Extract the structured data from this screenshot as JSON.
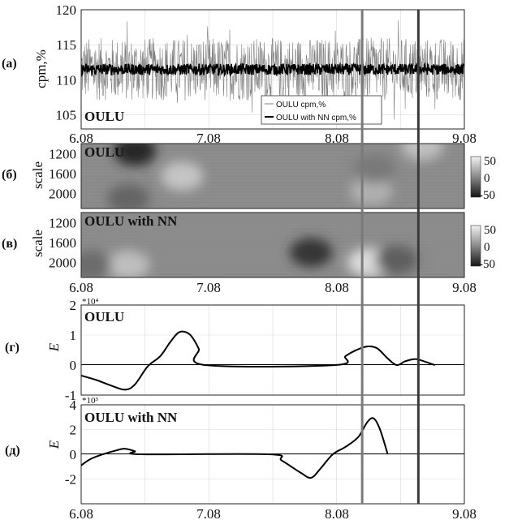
{
  "figure": {
    "x_ticks": [
      "6.08",
      "7.08",
      "8.08",
      "9.08"
    ],
    "vertical_markers": [
      {
        "x": 8.28,
        "color": "#7a7a7a"
      },
      {
        "x": 8.72,
        "color": "#3a3a3a"
      }
    ]
  },
  "colors": {
    "raw_series": "#7f7f7f",
    "nn_series": "#000000",
    "grid": "#d9d9d9",
    "heatmap_base": "#8a8a8a",
    "frame": "#222222"
  },
  "chart_data": [
    {
      "type": "line",
      "panel_label": "(а)",
      "inset_label": "OULU",
      "ylabel": "cpm,%",
      "ylim": [
        103,
        120
      ],
      "y_ticks": [
        "105",
        "110",
        "115",
        "120"
      ],
      "x_range": [
        6.08,
        9.08
      ],
      "x_ticks": [
        "6.08",
        "7.08",
        "8.08",
        "9.08"
      ],
      "legend_position": "bottom-right",
      "series": [
        {
          "name": "OULU cpm,%",
          "color": "#7f7f7f",
          "mean": 111.5,
          "noise_amplitude": 4.5,
          "min": 104,
          "max": 118.5
        },
        {
          "name": "OULU with NN cpm,%",
          "color": "#000000",
          "mean": 111.5,
          "noise_amplitude": 0.8
        }
      ]
    },
    {
      "type": "heatmap",
      "panel_label": "(б)",
      "inset_label": "OULU",
      "ylabel": "scale",
      "y_ticks": [
        "1200",
        "1600",
        "2000"
      ],
      "y_range": [
        1000,
        2300
      ],
      "x_range": [
        6.08,
        9.08
      ],
      "colorbar_ticks": [
        "50",
        "0",
        "-50"
      ],
      "blobs": [
        {
          "x": 6.5,
          "scale": 1150,
          "value": -70
        },
        {
          "x": 6.87,
          "scale": 1650,
          "value": 45
        },
        {
          "x": 6.45,
          "scale": 2100,
          "value": -25
        },
        {
          "x": 8.35,
          "scale": 1950,
          "value": 30
        },
        {
          "x": 8.75,
          "scale": 1050,
          "value": 40
        },
        {
          "x": 8.38,
          "scale": 1500,
          "value": -10
        }
      ]
    },
    {
      "type": "heatmap",
      "panel_label": "(в)",
      "inset_label": "OULU with NN",
      "ylabel": "scale",
      "y_ticks": [
        "1200",
        "1600",
        "2000"
      ],
      "y_range": [
        1000,
        2300
      ],
      "x_range": [
        6.08,
        9.08
      ],
      "colorbar_ticks": [
        "50",
        "0",
        "-50"
      ],
      "blobs": [
        {
          "x": 6.45,
          "scale": 2050,
          "value": 40
        },
        {
          "x": 6.15,
          "scale": 2050,
          "value": -20
        },
        {
          "x": 7.88,
          "scale": 1800,
          "value": -60
        },
        {
          "x": 8.33,
          "scale": 2000,
          "value": 60
        },
        {
          "x": 8.55,
          "scale": 1950,
          "value": -30
        }
      ]
    },
    {
      "type": "line",
      "panel_label": "(г)",
      "inset_label": "OULU",
      "ylabel": "E",
      "y_multiplier": "*10⁴",
      "y_ticks": [
        "2",
        "1",
        "0",
        "-1"
      ],
      "ylim": [
        -1,
        2
      ],
      "x_range": [
        6.08,
        9.08
      ],
      "x": [
        6.08,
        6.2,
        6.3,
        6.42,
        6.5,
        6.6,
        6.7,
        6.78,
        6.85,
        6.93,
        7.0,
        7.05,
        8.07,
        8.15,
        8.25,
        8.33,
        8.4,
        8.48,
        8.55,
        8.62,
        8.7,
        8.78,
        8.85
      ],
      "y": [
        -0.35,
        -0.5,
        -0.66,
        -0.82,
        -0.65,
        -0.05,
        0.3,
        0.78,
        1.1,
        1.02,
        0.55,
        0.0,
        0.0,
        0.3,
        0.53,
        0.62,
        0.55,
        0.22,
        0.0,
        0.13,
        0.2,
        0.1,
        0.0
      ]
    },
    {
      "type": "line",
      "panel_label": "(д)",
      "inset_label": "OULU with NN",
      "ylabel": "E",
      "y_multiplier": "*10³",
      "y_ticks": [
        "4",
        "2",
        "0",
        "-2"
      ],
      "ylim": [
        -4,
        4
      ],
      "x_range": [
        6.08,
        9.08
      ],
      "x": [
        6.08,
        6.15,
        6.25,
        6.35,
        6.42,
        6.5,
        6.55,
        7.55,
        7.65,
        7.8,
        7.88,
        7.95,
        8.05,
        8.15,
        8.25,
        8.32,
        8.37,
        8.42,
        8.48
      ],
      "y": [
        -0.9,
        -0.4,
        0.0,
        0.3,
        0.45,
        0.25,
        0.0,
        0.0,
        -0.5,
        -1.5,
        -1.9,
        -1.2,
        0.0,
        0.6,
        1.4,
        2.6,
        2.9,
        2.0,
        0.0
      ]
    }
  ]
}
